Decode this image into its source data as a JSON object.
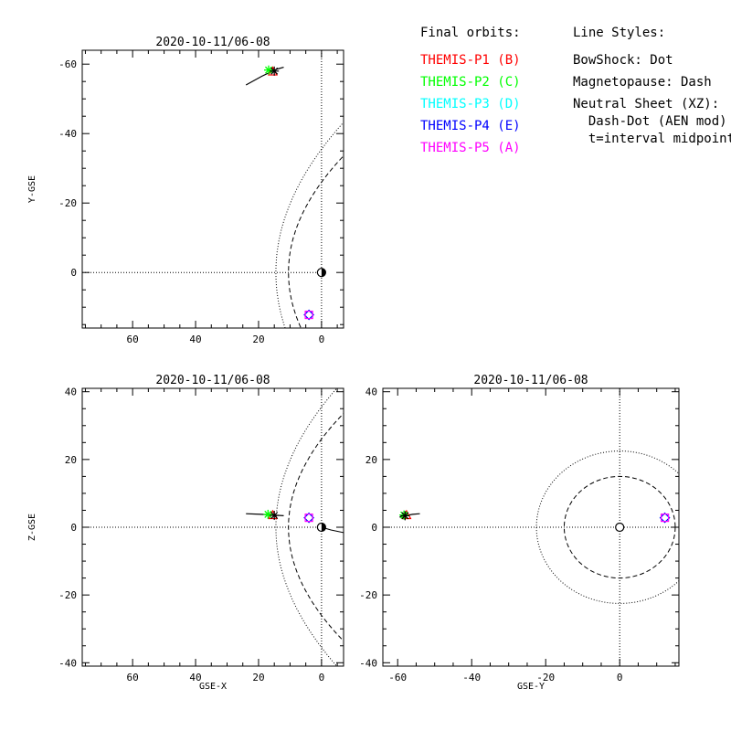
{
  "colors": {
    "P1": "#ff0000",
    "P2": "#00ff00",
    "P3": "#00ffff",
    "P4": "#0000ff",
    "P5": "#ff00ff",
    "axes": "#000000"
  },
  "legend": {
    "orbits_title": "Final orbits:",
    "probes": [
      {
        "label": "THEMIS-P1 (B)",
        "color": "#ff0000"
      },
      {
        "label": "THEMIS-P2 (C)",
        "color": "#00ff00"
      },
      {
        "label": "THEMIS-P3 (D)",
        "color": "#00ffff"
      },
      {
        "label": "THEMIS-P4 (E)",
        "color": "#0000ff"
      },
      {
        "label": "THEMIS-P5 (A)",
        "color": "#ff00ff"
      }
    ],
    "styles_title": "Line Styles:",
    "styles": [
      "BowShock: Dot",
      "Magnetopause: Dash",
      "Neutral Sheet (XZ):",
      "  Dash-Dot (AEN mod)",
      "  t=interval midpoint"
    ]
  },
  "chart_data": [
    {
      "type": "scatter",
      "title": "2020-10-11/06-08",
      "xlabel": "",
      "ylabel": "Y-GSE",
      "xlim": [
        76,
        -7
      ],
      "ylim": [
        16,
        -64
      ],
      "xticks": [
        60,
        40,
        20,
        0
      ],
      "yticks": [
        -60,
        -40,
        -20,
        0
      ],
      "orbit_tracks": [
        {
          "name": "orbit-p1-p2",
          "points": [
            [
              24,
              -54
            ],
            [
              19,
              -56.5
            ],
            [
              16,
              -57.8
            ],
            [
              14,
              -58.6
            ],
            [
              12,
              -59.1
            ]
          ]
        }
      ],
      "probes": [
        {
          "id": "P1",
          "x": 15.5,
          "y": -57.8,
          "marker": "triangle"
        },
        {
          "id": "P2",
          "x": 16.8,
          "y": -58.3,
          "marker": "asterisk"
        },
        {
          "id": "P3",
          "x": 4.0,
          "y": 12.2,
          "marker": "diamond"
        },
        {
          "id": "P4",
          "x": 4.0,
          "y": 12.2,
          "marker": "diamond"
        },
        {
          "id": "P5",
          "x": 4.0,
          "y": 12.2,
          "marker": "square"
        }
      ],
      "center_star": {
        "x": 15,
        "y": -58
      },
      "bowshock_standoff": 14.5,
      "magnetopause_standoff": 10.5,
      "earth": {
        "x": 0,
        "y": 0
      }
    },
    {
      "type": "scatter",
      "title": "2020-10-11/06-08",
      "xlabel": "GSE-X",
      "ylabel": "Z-GSE",
      "xlim": [
        76,
        -7
      ],
      "ylim": [
        -41,
        41
      ],
      "xticks": [
        60,
        40,
        20,
        0
      ],
      "yticks": [
        -40,
        -20,
        0,
        20,
        40
      ],
      "orbit_tracks": [
        {
          "name": "orbit-p1-p2",
          "points": [
            [
              24,
              4.0
            ],
            [
              19,
              3.8
            ],
            [
              15.5,
              3.6
            ],
            [
              12,
              3.4
            ]
          ]
        }
      ],
      "neutral_sheet": [
        [
          0,
          0
        ],
        [
          -3,
          -0.8
        ],
        [
          -7,
          -1.6
        ]
      ],
      "probes": [
        {
          "id": "P1",
          "x": 15.5,
          "y": 3.5,
          "marker": "triangle"
        },
        {
          "id": "P2",
          "x": 17.0,
          "y": 3.8,
          "marker": "asterisk"
        },
        {
          "id": "P3",
          "x": 4.0,
          "y": 2.8,
          "marker": "diamond"
        },
        {
          "id": "P4",
          "x": 4.0,
          "y": 2.8,
          "marker": "diamond"
        },
        {
          "id": "P5",
          "x": 4.0,
          "y": 2.8,
          "marker": "square"
        }
      ],
      "center_star": {
        "x": 15,
        "y": 3.5
      },
      "bowshock_standoff": 14.5,
      "magnetopause_standoff": 10.5,
      "earth": {
        "x": 0,
        "y": 0
      }
    },
    {
      "type": "scatter",
      "title": "2020-10-11/06-08",
      "xlabel": "GSE-Y",
      "ylabel": "",
      "xlim": [
        -64,
        16
      ],
      "ylim": [
        -41,
        41
      ],
      "xticks": [
        -60,
        -40,
        -20,
        0
      ],
      "yticks": [
        -40,
        -20,
        0,
        20,
        40
      ],
      "orbit_tracks": [
        {
          "name": "orbit-p1-p2",
          "points": [
            [
              -59.5,
              3.0
            ],
            [
              -58,
              3.4
            ],
            [
              -56,
              3.8
            ],
            [
              -54,
              4.0
            ]
          ]
        }
      ],
      "probes": [
        {
          "id": "P1",
          "x": -57.6,
          "y": 3.5,
          "marker": "triangle"
        },
        {
          "id": "P2",
          "x": -58.3,
          "y": 3.6,
          "marker": "asterisk"
        },
        {
          "id": "P3",
          "x": 12.2,
          "y": 2.8,
          "marker": "diamond"
        },
        {
          "id": "P4",
          "x": 12.2,
          "y": 2.8,
          "marker": "diamond"
        },
        {
          "id": "P5",
          "x": 12.2,
          "y": 2.8,
          "marker": "square"
        }
      ],
      "center_star": {
        "x": -58,
        "y": 3.4
      },
      "bowshock_radius": 22.5,
      "magnetopause_radius": 15,
      "earth": {
        "x": 0,
        "y": 0
      }
    }
  ]
}
